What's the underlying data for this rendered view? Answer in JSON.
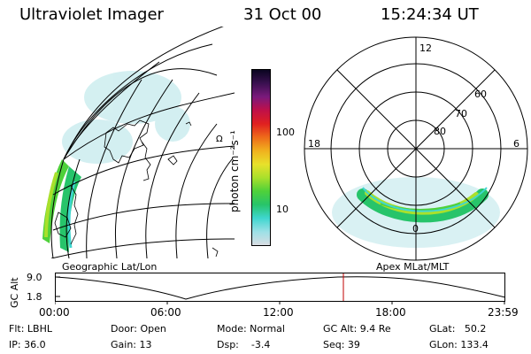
{
  "header": {
    "instrument": "Ultraviolet Imager",
    "date": "31 Oct 00",
    "time": "15:24:34 UT"
  },
  "colorbar": {
    "unit_label": "photon cm⁻²s⁻¹",
    "tick_labels": [
      "100",
      "10"
    ],
    "colors": [
      "#d9dde3",
      "#9ce0e6",
      "#3fd6cf",
      "#27c46a",
      "#4fd13a",
      "#a9e02c",
      "#e8e12b",
      "#f0b11e",
      "#ee6b1a",
      "#e02020",
      "#c01048",
      "#7a1a7c",
      "#3a1050",
      "#0a0520"
    ]
  },
  "geo_panel": {
    "label": "Geographic Lat/Lon",
    "marks": [
      "Ω"
    ]
  },
  "polar_panel": {
    "label": "Apex MLat/MLT",
    "lat_labels": [
      "60",
      "70",
      "80"
    ],
    "mlt_labels": {
      "top": "12",
      "left": "18",
      "right": "6",
      "bottom": "0"
    }
  },
  "altitude_plot": {
    "ylabel": "GC Alt",
    "y_ticks": [
      "9.0",
      "1.8"
    ],
    "x_ticks": [
      "00:00",
      "06:00",
      "12:00",
      "18:00",
      "23:59"
    ],
    "cursor_color": "#c00000"
  },
  "info": {
    "filter": "Flt: LBHL",
    "ip": "IP: 36.0",
    "door": "Door: Open",
    "gain": "Gain: 13",
    "mode": "Mode: Normal",
    "dsp": "Dsp:    -3.4",
    "gc_alt": "GC Alt: 9.4 Re",
    "seq": "Seq: 39",
    "glat": "GLat:   50.2",
    "glon": "GLon: 133.4"
  }
}
